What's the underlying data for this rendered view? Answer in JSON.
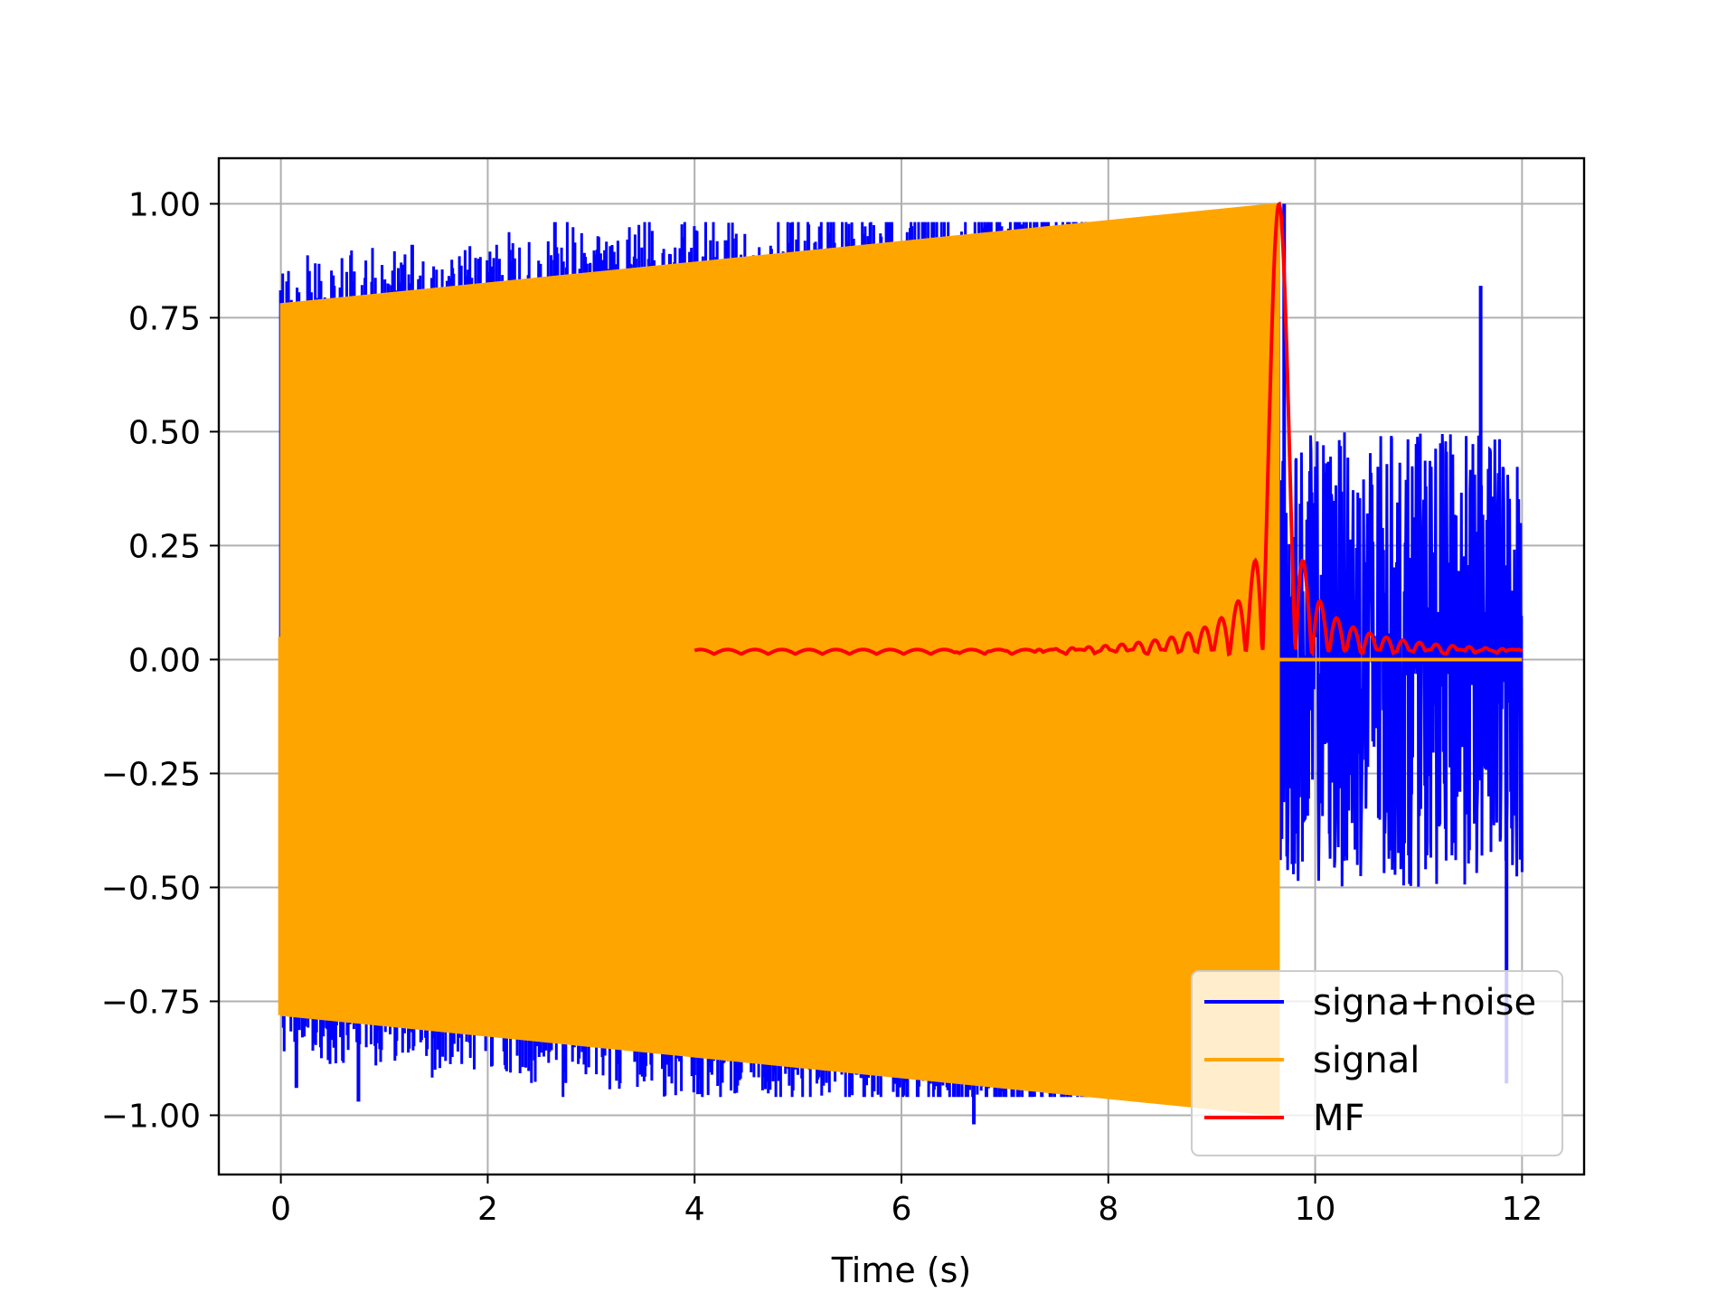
{
  "chart_data": {
    "type": "line",
    "title": "",
    "xlabel": "Time (s)",
    "ylabel": "",
    "xlim": [
      -0.6,
      12.6
    ],
    "ylim": [
      -1.13,
      1.1
    ],
    "grid": true,
    "legend_position": "lower-right",
    "x_ticks": [
      0,
      2,
      4,
      6,
      8,
      10,
      12
    ],
    "x_tick_labels": [
      "0",
      "2",
      "4",
      "6",
      "8",
      "10",
      "12"
    ],
    "y_ticks": [
      1.0,
      0.75,
      0.5,
      0.25,
      0.0,
      -0.25,
      -0.5,
      -0.75,
      -1.0
    ],
    "y_tick_labels": [
      "1.00",
      "0.75",
      "0.50",
      "0.25",
      "0.00",
      "−0.25",
      "−0.50",
      "−0.75",
      "−1.00"
    ],
    "series": [
      {
        "name": "signa+noise",
        "color": "#0000ff",
        "x_range": [
          0,
          12
        ],
        "envelope_points": [
          {
            "x": 0.0,
            "y": 0.81
          },
          {
            "x": 0.15,
            "y": -0.94
          },
          {
            "x": 0.75,
            "y": -0.97
          },
          {
            "x": 1.27,
            "y": 0.91
          },
          {
            "x": 2.65,
            "y": 0.96
          },
          {
            "x": 4.3,
            "y": 0.92
          },
          {
            "x": 6.7,
            "y": -1.02
          },
          {
            "x": 9.7,
            "y": 1.0
          },
          {
            "x": 11.6,
            "y": 0.82
          },
          {
            "x": 11.85,
            "y": -0.93
          }
        ]
      },
      {
        "name": "signal",
        "color": "#ffa500",
        "x_range": [
          0,
          12
        ],
        "envelope_start": 0.78,
        "envelope_end": 1.0,
        "end_time": 9.65
      },
      {
        "name": "MF",
        "color": "#ff0000",
        "x_range": [
          4,
          12
        ],
        "peak": {
          "x": 9.65,
          "y": 1.0
        }
      }
    ]
  }
}
